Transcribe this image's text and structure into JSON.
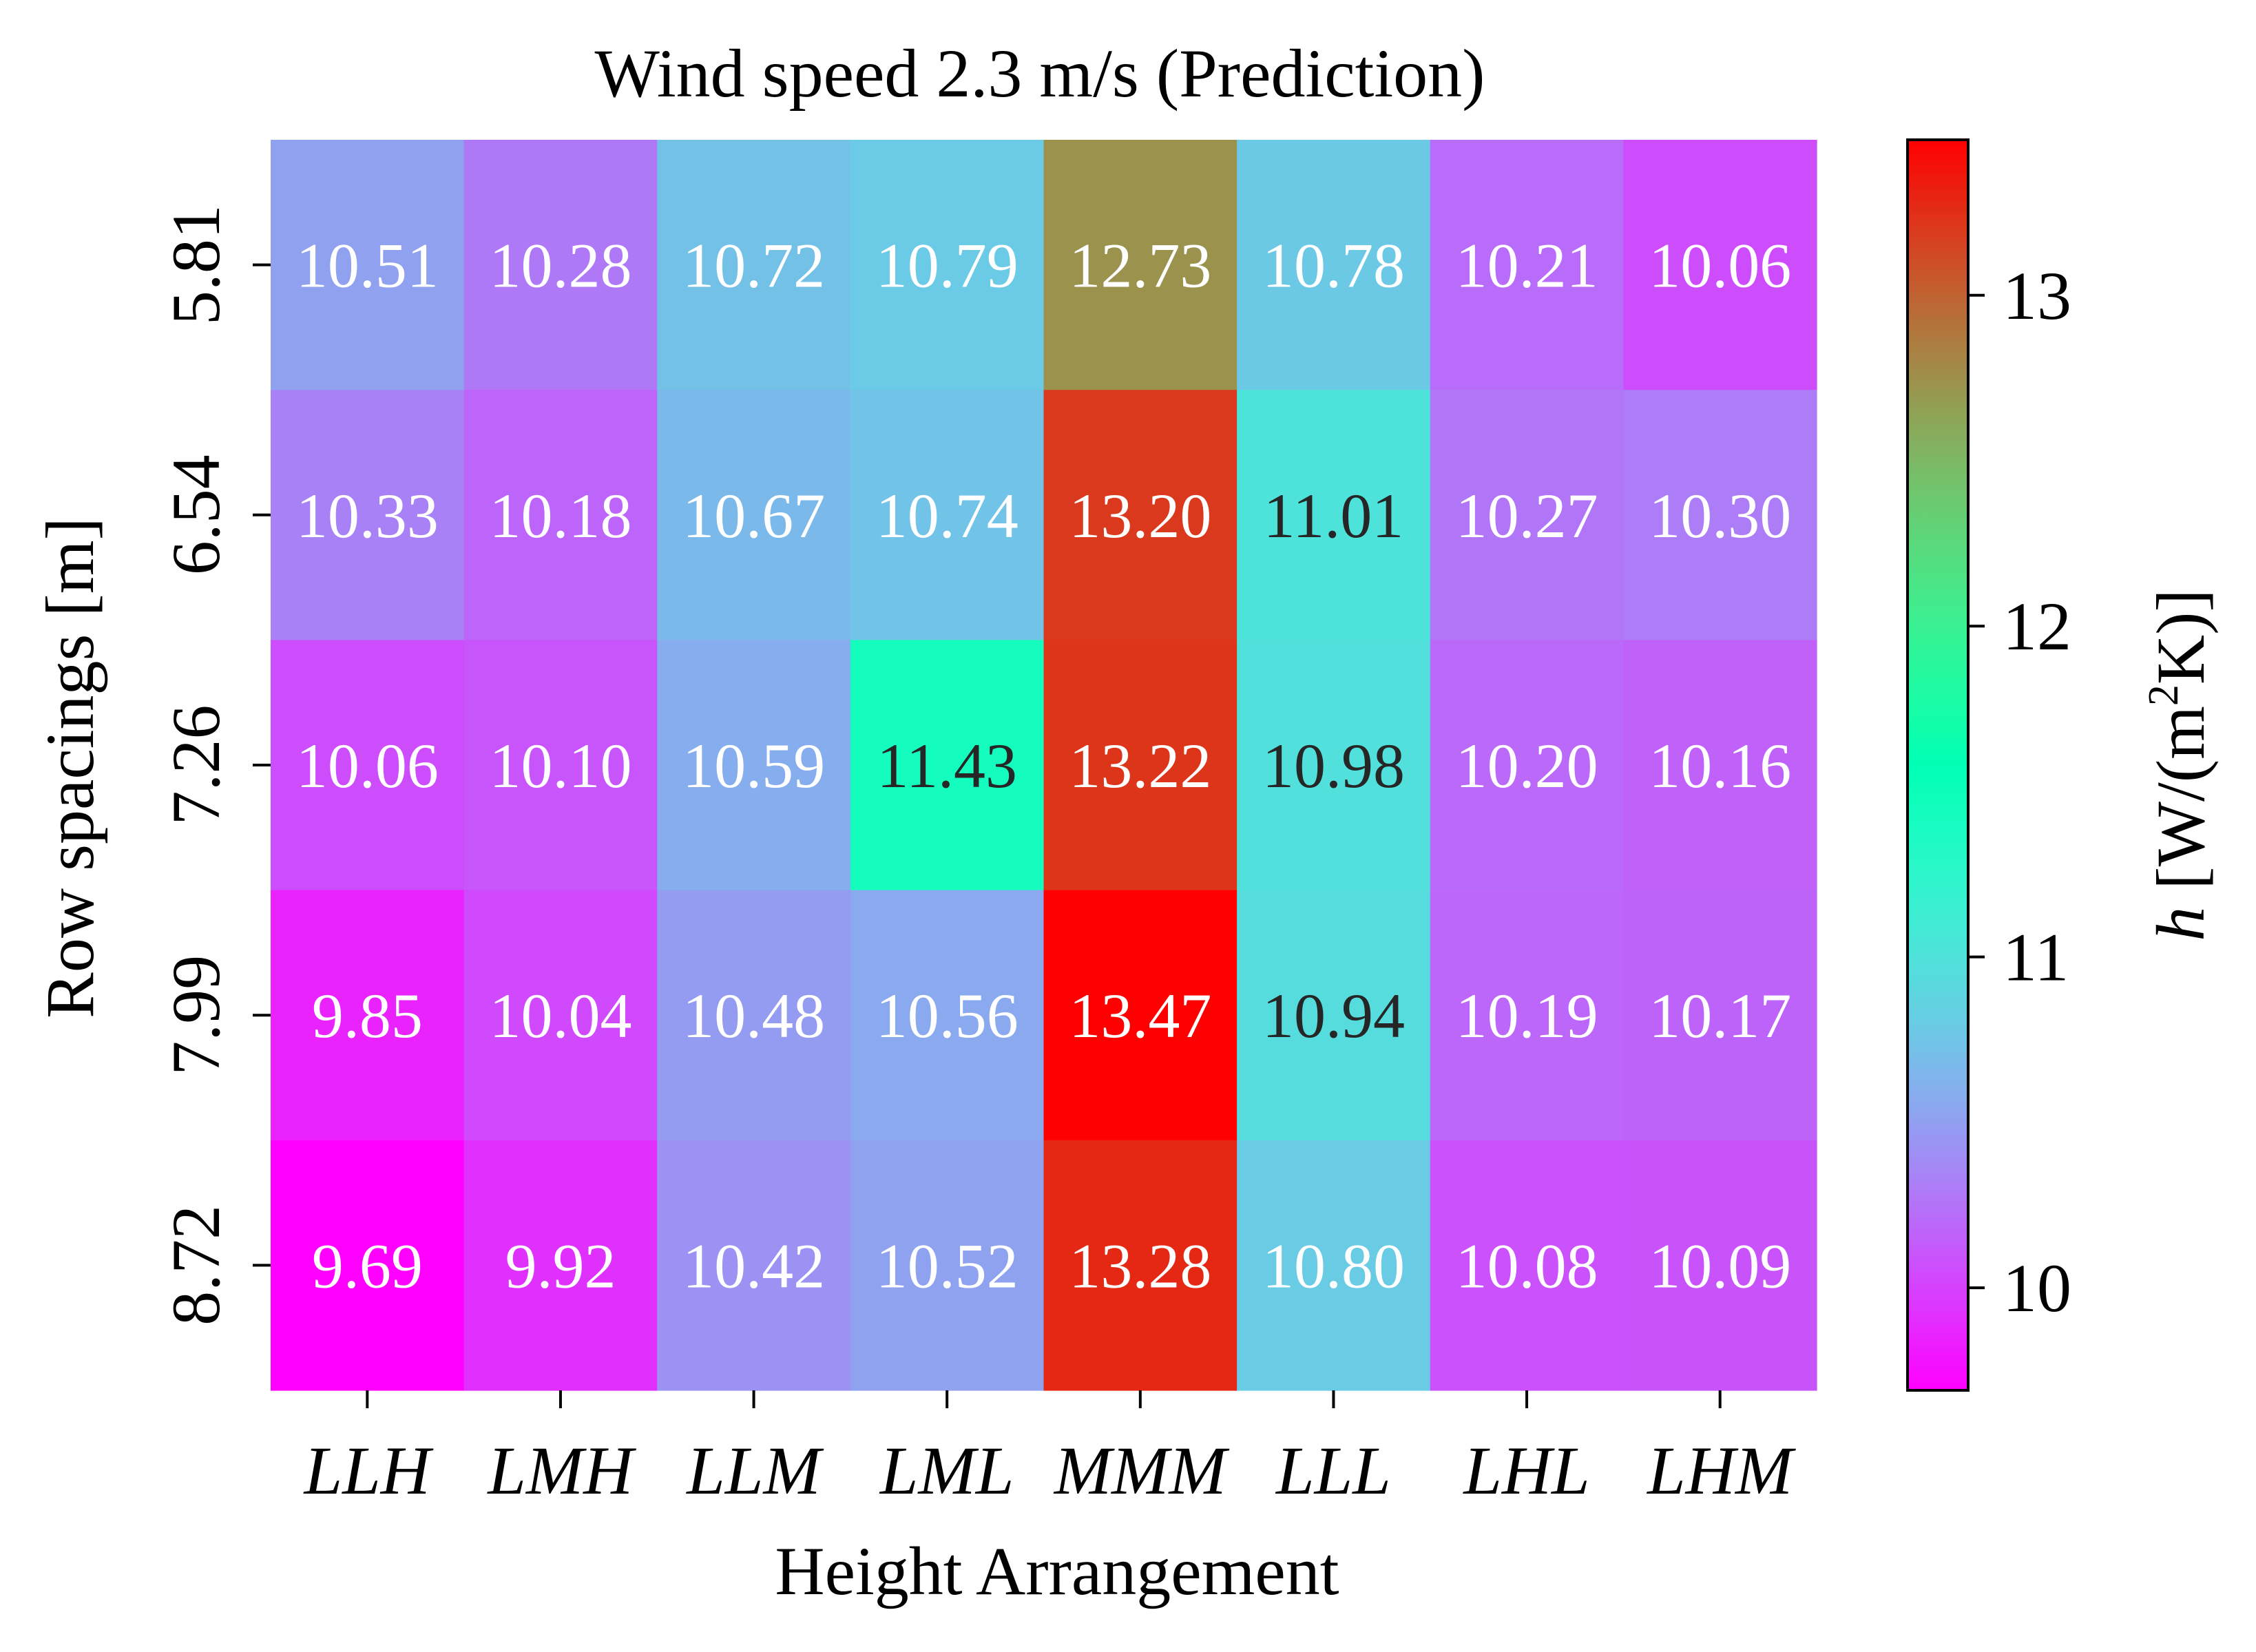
{
  "chart_data": {
    "type": "heatmap",
    "title": "Wind speed 2.3 m/s (Prediction)",
    "xlabel": "Height Arrangement",
    "ylabel": "Row spacings [m]",
    "x_categories": [
      "LLH",
      "LMH",
      "LLM",
      "LML",
      "MMM",
      "LLL",
      "LHL",
      "LHM"
    ],
    "y_categories": [
      "5.81",
      "6.54",
      "7.26",
      "7.99",
      "8.72"
    ],
    "values": [
      [
        10.51,
        10.28,
        10.72,
        10.79,
        12.73,
        10.78,
        10.21,
        10.06
      ],
      [
        10.33,
        10.18,
        10.67,
        10.74,
        13.2,
        11.01,
        10.27,
        10.3
      ],
      [
        10.06,
        10.1,
        10.59,
        11.43,
        13.22,
        10.98,
        10.2,
        10.16
      ],
      [
        9.85,
        10.04,
        10.48,
        10.56,
        13.47,
        10.94,
        10.19,
        10.17
      ],
      [
        9.69,
        9.92,
        10.42,
        10.52,
        13.28,
        10.8,
        10.08,
        10.09
      ]
    ],
    "value_labels": [
      [
        "10.51",
        "10.28",
        "10.72",
        "10.79",
        "12.73",
        "10.78",
        "10.21",
        "10.06"
      ],
      [
        "10.33",
        "10.18",
        "10.67",
        "10.74",
        "13.20",
        "11.01",
        "10.27",
        "10.30"
      ],
      [
        "10.06",
        "10.10",
        "10.59",
        "11.43",
        "13.22",
        "10.98",
        "10.20",
        "10.16"
      ],
      [
        "9.85",
        "10.04",
        "10.48",
        "10.56",
        "13.47",
        "10.94",
        "10.19",
        "10.17"
      ],
      [
        "9.69",
        "9.92",
        "10.42",
        "10.52",
        "13.28",
        "10.80",
        "10.08",
        "10.09"
      ]
    ],
    "colorbar": {
      "label_italic": "h",
      "label_rest": " [W/(m",
      "label_sup": "2",
      "label_end": "K)]",
      "range": [
        9.69,
        13.47
      ],
      "ticks": [
        10,
        11,
        12,
        13
      ],
      "colormap": "rainbow"
    },
    "grid": false
  }
}
